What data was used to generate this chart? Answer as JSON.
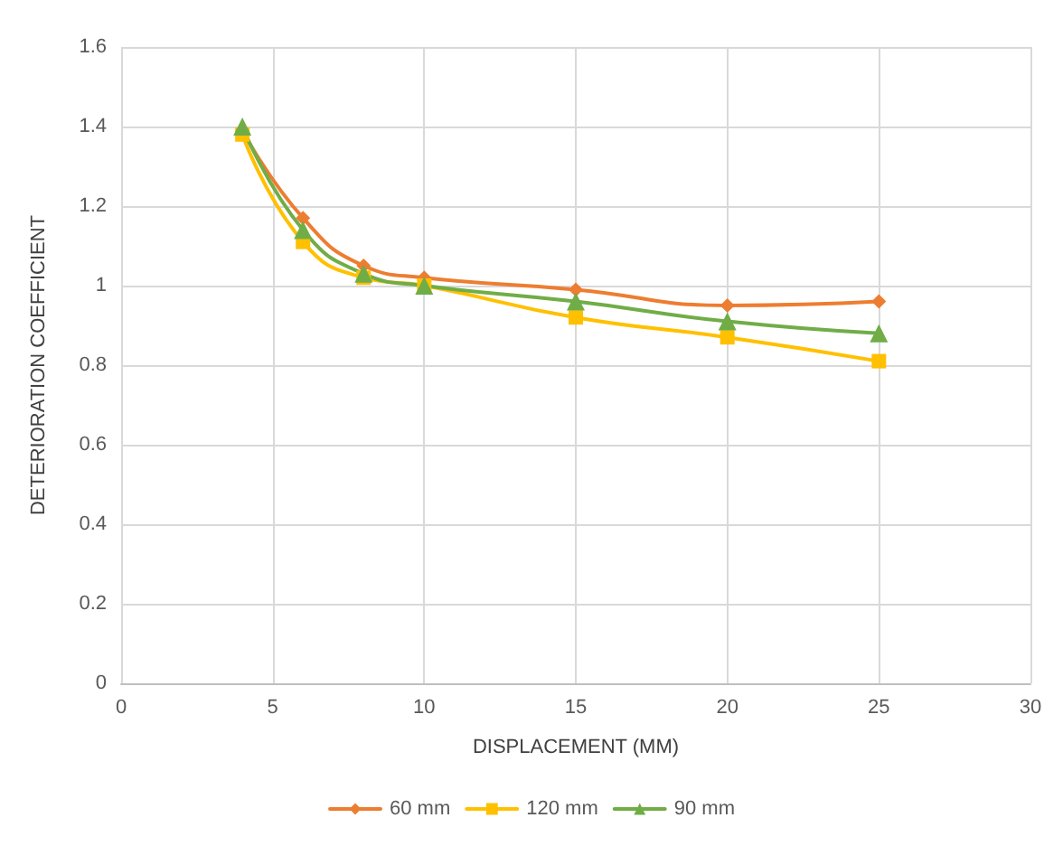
{
  "chart_data": {
    "type": "line",
    "xlabel": "DISPLACEMENT (MM)",
    "ylabel": "DETERIORATION COEFFICIENT",
    "x": [
      4,
      6,
      8,
      10,
      15,
      20,
      25
    ],
    "xlim": [
      0,
      30
    ],
    "xticks": [
      0,
      5,
      10,
      15,
      20,
      25,
      30
    ],
    "ylim": [
      0,
      1.6
    ],
    "yticks": [
      0,
      0.2,
      0.4,
      0.6,
      0.8,
      1,
      1.2,
      1.4,
      1.6
    ],
    "grid": true,
    "legend": "bottom",
    "series": [
      {
        "name": "60 mm",
        "color": "#ed7d31",
        "marker": "diamond",
        "values": [
          1.39,
          1.17,
          1.05,
          1.02,
          0.99,
          0.95,
          0.96
        ]
      },
      {
        "name": "120 mm",
        "color": "#ffc000",
        "marker": "square",
        "values": [
          1.38,
          1.11,
          1.02,
          1.0,
          0.92,
          0.87,
          0.81
        ]
      },
      {
        "name": "90 mm",
        "color": "#70ad47",
        "marker": "triangle",
        "values": [
          1.4,
          1.14,
          1.03,
          1.0,
          0.96,
          0.91,
          0.88
        ]
      }
    ]
  }
}
